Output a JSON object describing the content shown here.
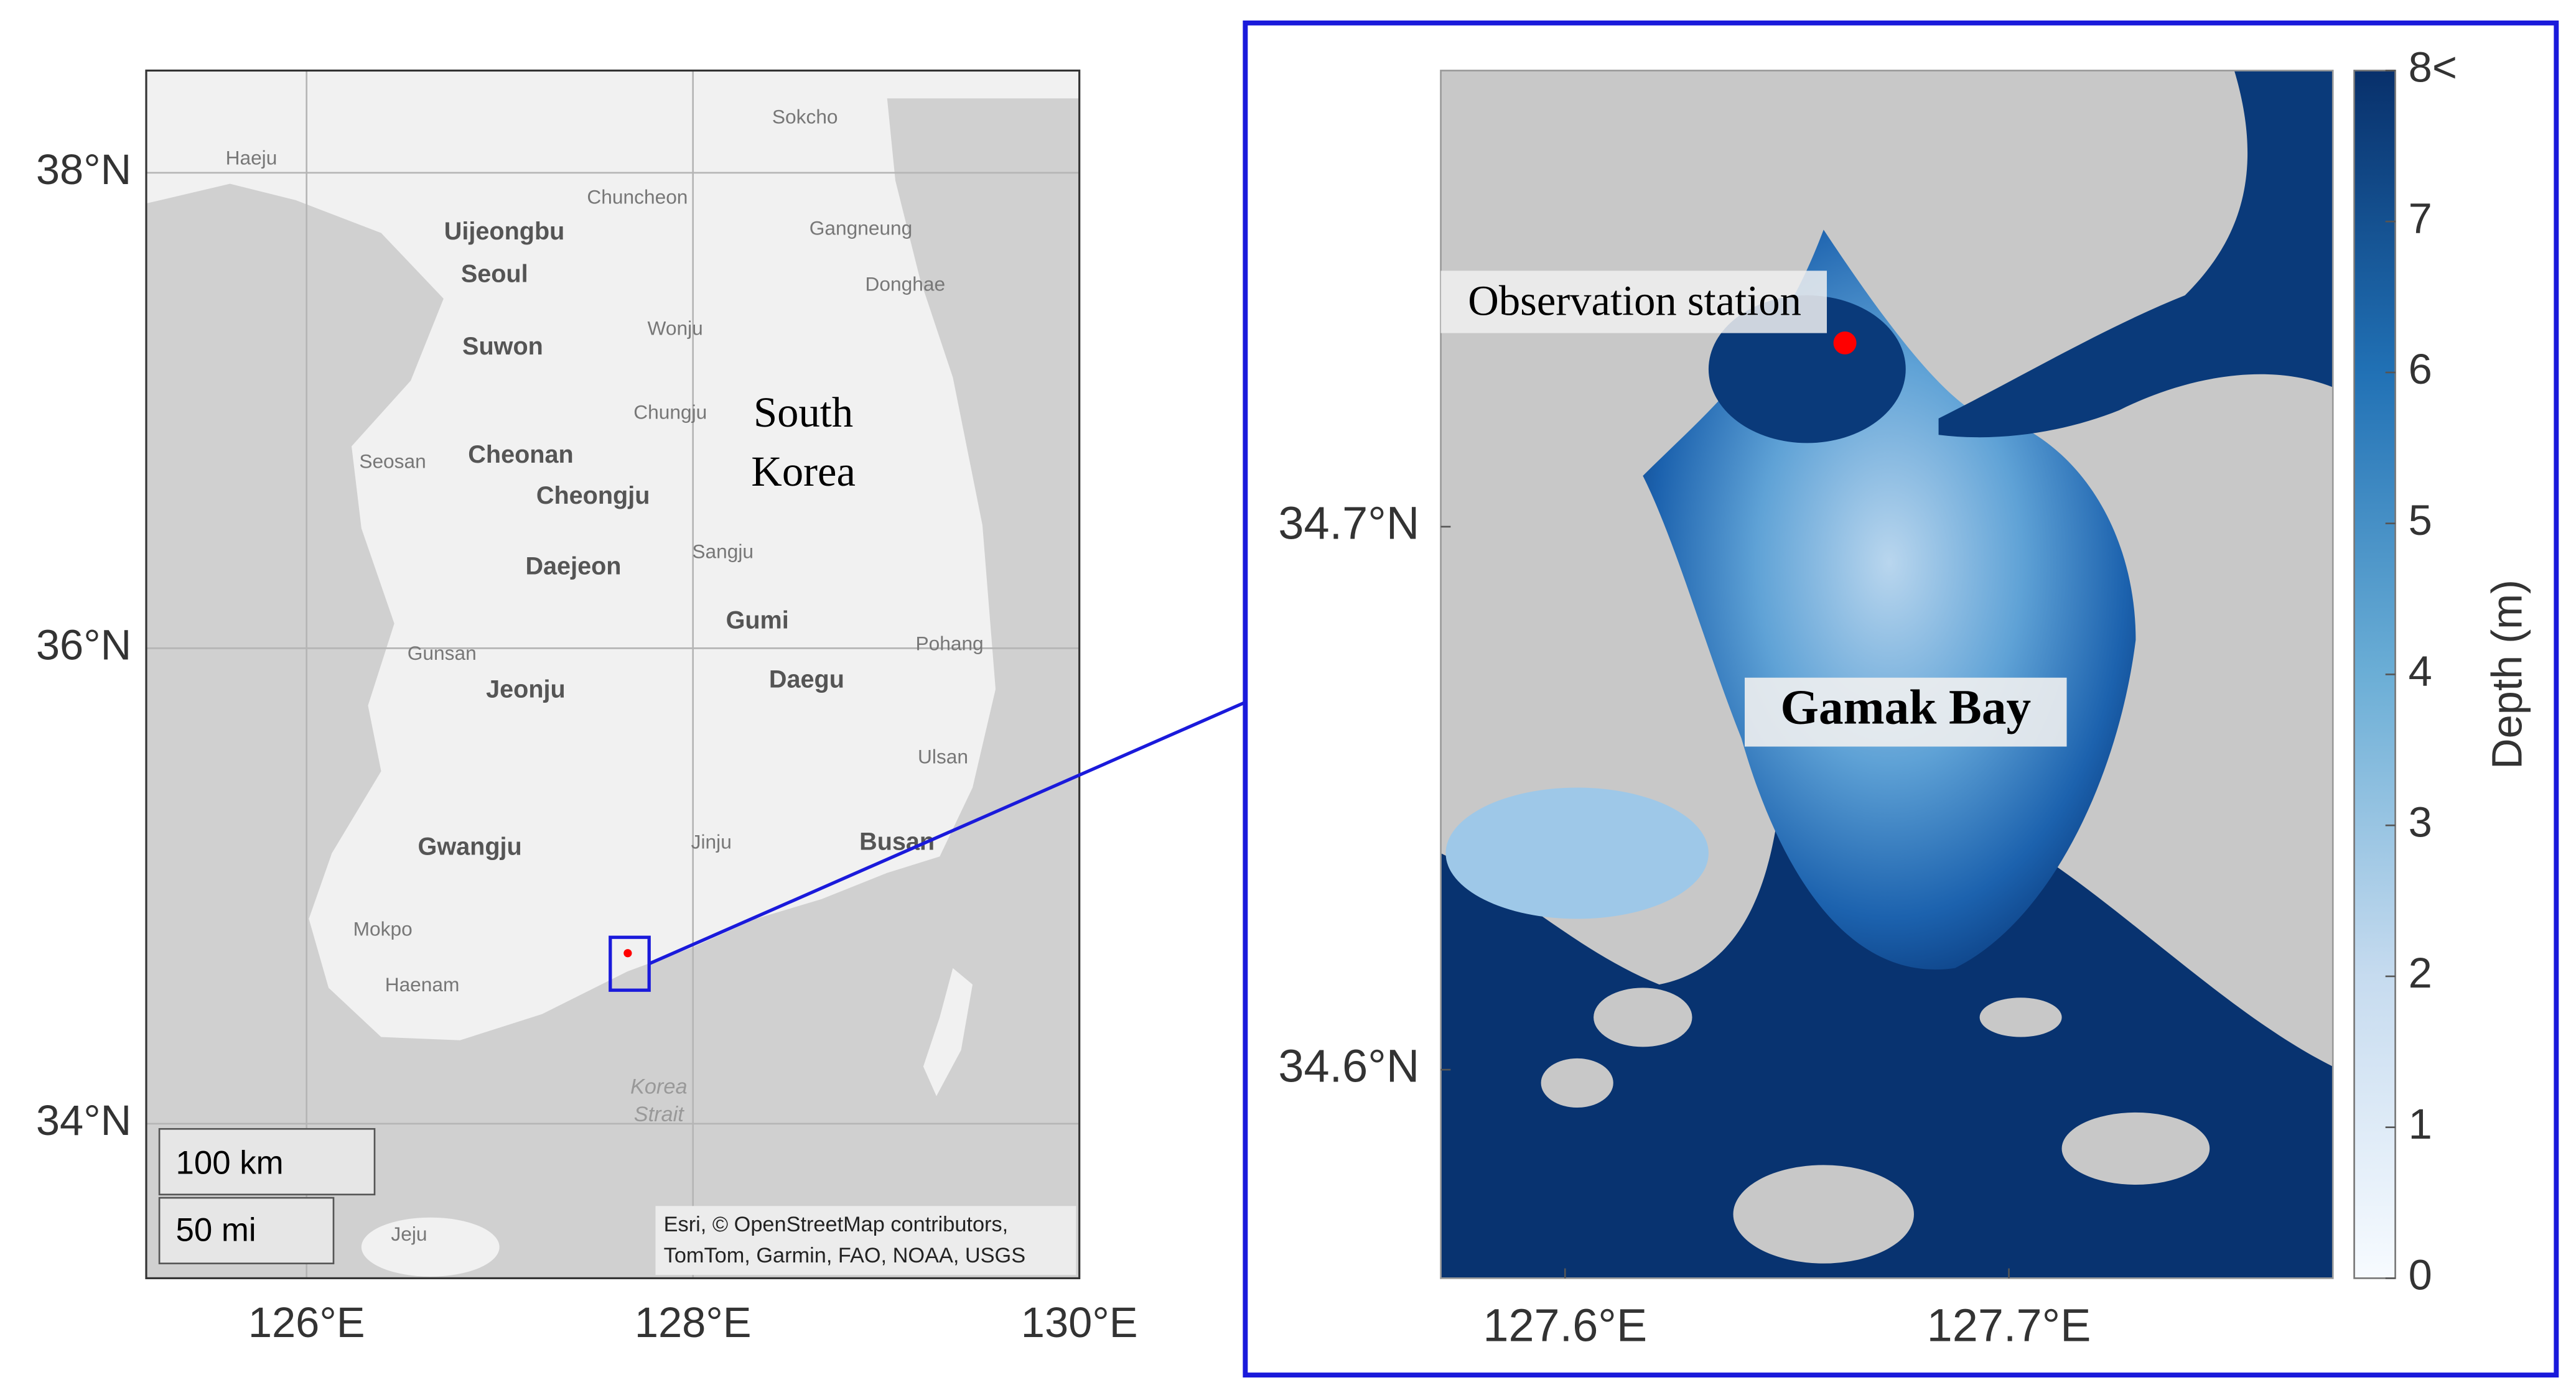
{
  "left_map": {
    "xlim": [
      125.17,
      130.0
    ],
    "ylim": [
      33.35,
      38.43
    ],
    "xticks": [
      {
        "value": 126,
        "label": "126°E"
      },
      {
        "value": 128,
        "label": "128°E"
      },
      {
        "value": 130,
        "label": "130°E"
      }
    ],
    "yticks": [
      {
        "value": 38,
        "label": "38°N"
      },
      {
        "value": 36,
        "label": "36°N"
      },
      {
        "value": 34,
        "label": "34°N"
      }
    ],
    "country_label": [
      "South",
      "Korea"
    ],
    "places": [
      "Sokcho",
      "Haeju",
      "Chuncheon",
      "Uijeongbu",
      "Gangneung",
      "Seoul",
      "Donghae",
      "Wonju",
      "Suwon",
      "Chungju",
      "Seosan",
      "Cheonan",
      "Cheongju",
      "Sangju",
      "Daejeon",
      "Gumi",
      "Pohang",
      "Gunsan",
      "Daegu",
      "Jeonju",
      "Ulsan",
      "Jinju",
      "Busan",
      "Gwangju",
      "Mokpo",
      "Haenam",
      "Jeju"
    ],
    "sea_label": [
      "Korea",
      "Strait"
    ],
    "scale_bar": [
      "100 km",
      "50 mi"
    ],
    "attribution": [
      "Esri, © OpenStreetMap contributors,",
      "TomTom, Garmin, FAO, NOAA, USGS"
    ]
  },
  "right_map": {
    "xlim": [
      127.572,
      127.773
    ],
    "ylim": [
      34.5616,
      34.784
    ],
    "xticks": [
      {
        "value": 127.6,
        "label": "127.6°E"
      },
      {
        "value": 127.7,
        "label": "127.7°E"
      }
    ],
    "yticks": [
      {
        "value": 34.7,
        "label": "34.7°N"
      },
      {
        "value": 34.6,
        "label": "34.6°N"
      }
    ],
    "station_label": "Observation station",
    "bay_label": "Gamak Bay"
  },
  "colorbar": {
    "label": "Depth (m)",
    "lim": [
      0,
      8
    ],
    "ticks": [
      0,
      1,
      2,
      3,
      4,
      5,
      6,
      7,
      {
        "value": 8,
        "label": "8<"
      }
    ]
  }
}
